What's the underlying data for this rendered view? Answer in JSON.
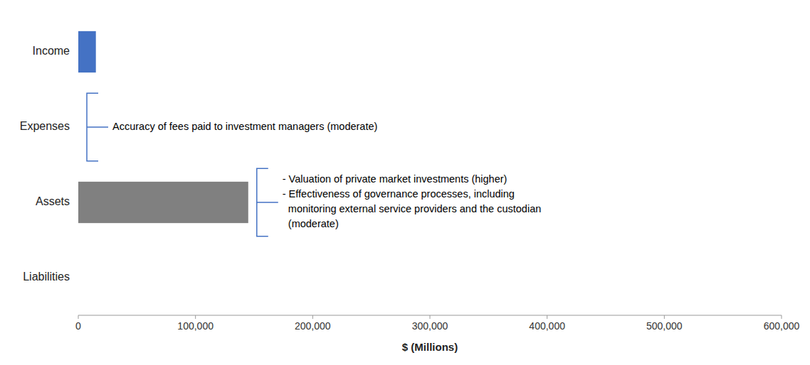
{
  "chart_data": {
    "type": "bar",
    "orientation": "horizontal",
    "categories": [
      "Income",
      "Expenses",
      "Assets",
      "Liabilities"
    ],
    "values": [
      15000,
      0,
      145000,
      0
    ],
    "colors": [
      "#4472C4",
      "#ffffff",
      "#808080",
      "#ffffff"
    ],
    "xlabel": "$ (Millions)",
    "xlim": [
      0,
      600000
    ],
    "xticks": [
      0,
      {
        "value": 100000,
        "label": "100,000"
      },
      {
        "value": 200000,
        "label": "200,000"
      },
      {
        "value": 300000,
        "label": "300,000"
      },
      {
        "value": 400000,
        "label": "400,000"
      },
      {
        "value": 500000,
        "label": "500,000"
      },
      {
        "value": 600000,
        "label": "600,000"
      }
    ],
    "grid": false,
    "annotations": [
      {
        "text": "Accuracy of fees paid to investment managers (moderate)",
        "category": "Expenses",
        "color": "#4472C4"
      },
      {
        "text": "- Valuation of private market investments (higher)\n- Effectiveness of governance processes, including\n  monitoring external service providers and the custodian\n  (moderate)",
        "category": "Assets",
        "color": "#4472C4"
      }
    ]
  }
}
